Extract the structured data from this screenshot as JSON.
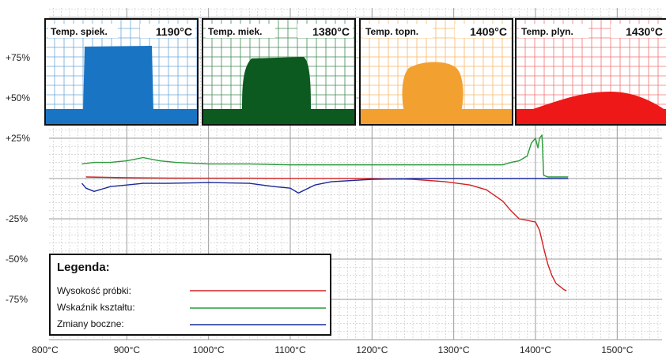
{
  "chart_data": {
    "type": "line",
    "x_unit": "°C",
    "xlim": [
      800,
      1550
    ],
    "ylim": [
      -100,
      30
    ],
    "grid": true,
    "x_ticks": [
      "800°C",
      "900°C",
      "1000°C",
      "1100°C",
      "1200°C",
      "1300°C",
      "1400°C",
      "1500°C"
    ],
    "y_ticks": [
      "+75%",
      "+50%",
      "+25%",
      "-25%",
      "-50%",
      "-75%"
    ],
    "legend": {
      "title": "Legenda:",
      "placement": "bottom-left"
    },
    "series": [
      {
        "name": "Wysokość próbki:",
        "color": "#d42020",
        "x": [
          850,
          900,
          950,
          1000,
          1050,
          1100,
          1150,
          1200,
          1250,
          1290,
          1320,
          1340,
          1360,
          1370,
          1380,
          1390,
          1400,
          1405,
          1410,
          1415,
          1420,
          1425,
          1430,
          1435,
          1438
        ],
        "y": [
          1,
          0.5,
          0.3,
          0.2,
          0.2,
          0.1,
          0.1,
          0,
          -0.5,
          -2,
          -4,
          -7,
          -14,
          -20,
          -25,
          -26,
          -27,
          -32,
          -43,
          -53,
          -60,
          -65,
          -67,
          -69,
          -69.5
        ]
      },
      {
        "name": "Wskaźnik kształtu:",
        "color": "#2a9a3a",
        "x": [
          845,
          860,
          880,
          900,
          920,
          940,
          960,
          1000,
          1050,
          1100,
          1150,
          1200,
          1250,
          1300,
          1340,
          1360,
          1370,
          1380,
          1390,
          1395,
          1400,
          1403,
          1405,
          1408,
          1410,
          1415,
          1440
        ],
        "y": [
          9,
          10,
          10,
          11,
          13,
          11,
          10,
          9,
          9,
          8.5,
          8.5,
          8.5,
          8.5,
          8.5,
          8.5,
          8.5,
          10,
          11,
          14,
          22,
          25,
          19,
          25,
          27,
          2,
          1,
          1
        ]
      },
      {
        "name": "Zmiany boczne:",
        "color": "#1a2a9a",
        "x": [
          845,
          850,
          860,
          880,
          900,
          920,
          950,
          1000,
          1050,
          1080,
          1100,
          1110,
          1130,
          1150,
          1200,
          1250,
          1300,
          1350,
          1400,
          1440
        ],
        "y": [
          -3,
          -6,
          -8,
          -5,
          -4,
          -3,
          -3,
          -2.5,
          -3,
          -5,
          -6,
          -9,
          -4,
          -2,
          -0.5,
          0,
          0,
          0,
          0,
          0
        ]
      }
    ]
  },
  "panels": [
    {
      "label": "Temp. spiek.",
      "temp": "1190°C",
      "color": "#1a74c4",
      "blob": "sinter",
      "grid_color": "#6aa8d8"
    },
    {
      "label": "Temp. miek.",
      "temp": "1380°C",
      "color": "#0c5a20",
      "blob": "soft",
      "grid_color": "#3f8a50"
    },
    {
      "label": "Temp. topn.",
      "temp": "1409°C",
      "color": "#f2a030",
      "blob": "melt",
      "grid_color": "#f5b865"
    },
    {
      "label": "Temp. plyn.",
      "temp": "1430°C",
      "color": "#ee1818",
      "blob": "flow",
      "grid_color": "#f07070"
    }
  ]
}
